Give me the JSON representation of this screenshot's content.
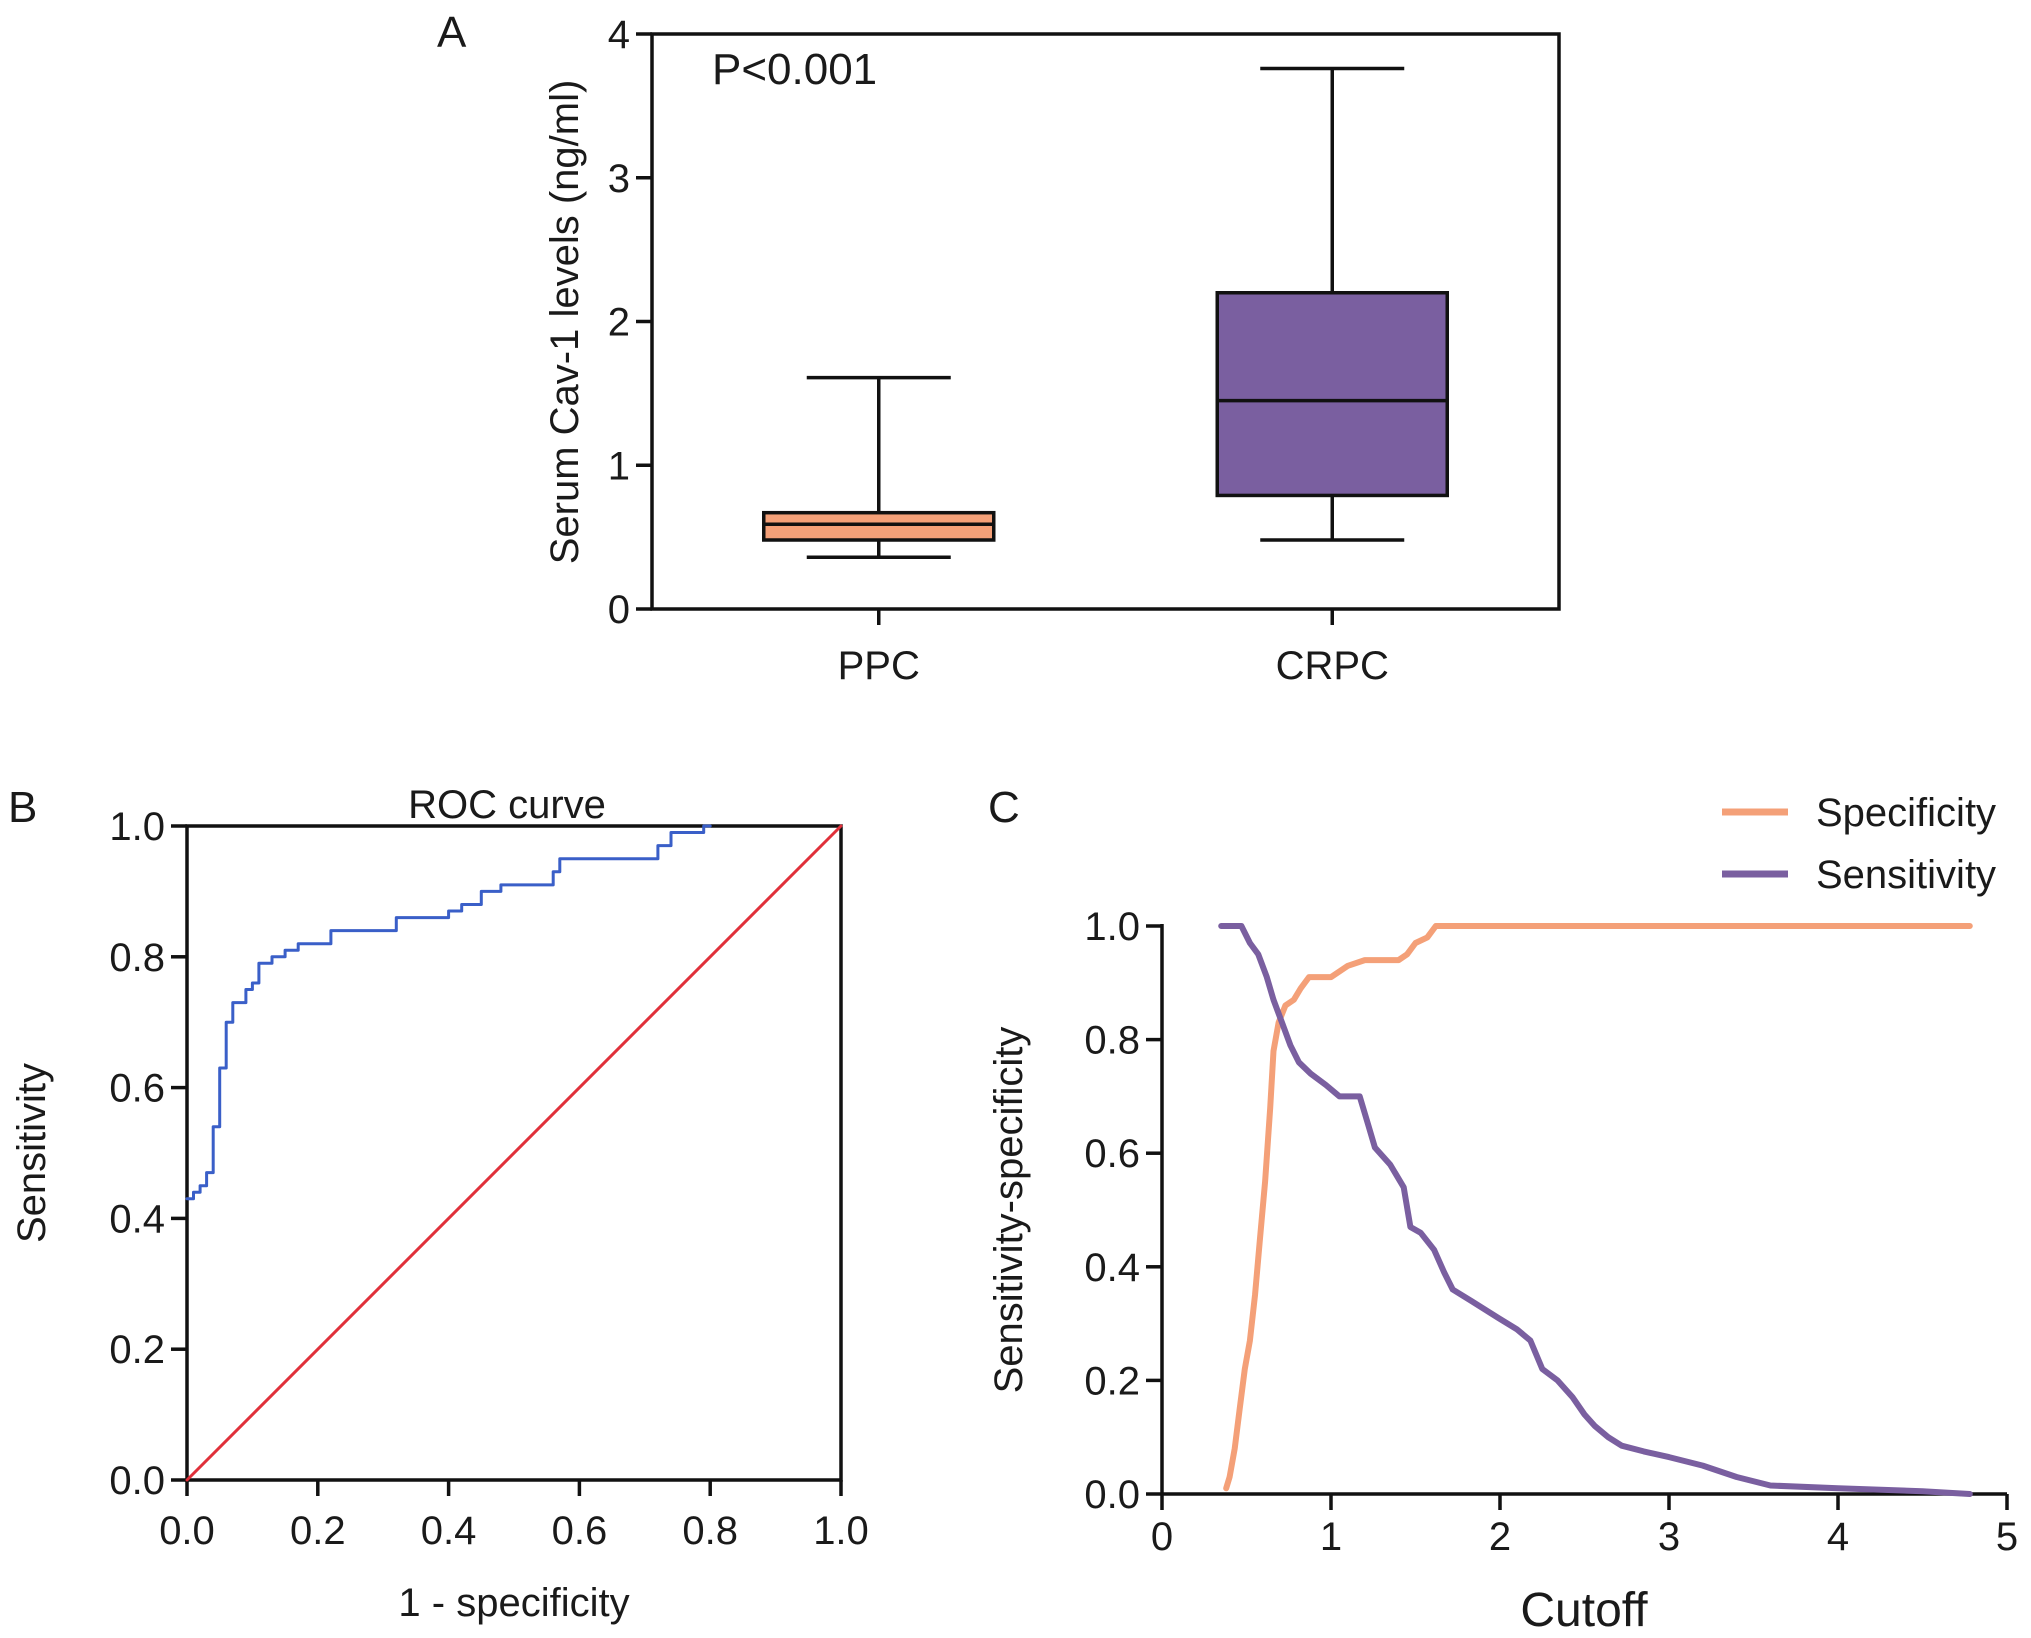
{
  "chart_data": [
    {
      "panel": "A",
      "type": "box",
      "title": "",
      "xlabel": "",
      "ylabel": "Serum Cav-1 levels (ng/ml)",
      "ylim": [
        0,
        4
      ],
      "yticks": [
        "0",
        "1",
        "2",
        "3",
        "4"
      ],
      "categories": [
        "PPC",
        "CRPC"
      ],
      "annotation": "P<0.001",
      "grid": false,
      "boxes": [
        {
          "name": "PPC",
          "whisker_low": 0.36,
          "q1": 0.48,
          "median": 0.59,
          "q3": 0.67,
          "whisker_high": 1.61,
          "color": "#F4A078"
        },
        {
          "name": "CRPC",
          "whisker_low": 0.48,
          "q1": 0.79,
          "median": 1.45,
          "q3": 2.2,
          "whisker_high": 3.76,
          "color": "#7A5FA0"
        }
      ]
    },
    {
      "panel": "B",
      "type": "line",
      "title": "ROC curve",
      "xlabel": "1 - specificity",
      "ylabel": "Sensitivity",
      "xlim": [
        0,
        1
      ],
      "ylim": [
        0,
        1
      ],
      "xticks": [
        "0.0",
        "0.2",
        "0.4",
        "0.6",
        "0.8",
        "1.0"
      ],
      "yticks": [
        "0.0",
        "0.2",
        "0.4",
        "0.6",
        "0.8",
        "1.0"
      ],
      "grid": false,
      "series": [
        {
          "name": "ROC",
          "color": "#3A5FC8",
          "step": true,
          "points": [
            [
              0,
              0.43
            ],
            [
              0.01,
              0.43
            ],
            [
              0.01,
              0.44
            ],
            [
              0.02,
              0.44
            ],
            [
              0.02,
              0.45
            ],
            [
              0.03,
              0.45
            ],
            [
              0.03,
              0.47
            ],
            [
              0.04,
              0.47
            ],
            [
              0.04,
              0.54
            ],
            [
              0.05,
              0.54
            ],
            [
              0.05,
              0.63
            ],
            [
              0.06,
              0.63
            ],
            [
              0.06,
              0.7
            ],
            [
              0.07,
              0.7
            ],
            [
              0.07,
              0.73
            ],
            [
              0.09,
              0.73
            ],
            [
              0.09,
              0.75
            ],
            [
              0.1,
              0.75
            ],
            [
              0.1,
              0.76
            ],
            [
              0.11,
              0.76
            ],
            [
              0.11,
              0.79
            ],
            [
              0.13,
              0.79
            ],
            [
              0.13,
              0.8
            ],
            [
              0.15,
              0.8
            ],
            [
              0.15,
              0.81
            ],
            [
              0.17,
              0.81
            ],
            [
              0.17,
              0.82
            ],
            [
              0.22,
              0.82
            ],
            [
              0.22,
              0.84
            ],
            [
              0.32,
              0.84
            ],
            [
              0.32,
              0.86
            ],
            [
              0.4,
              0.86
            ],
            [
              0.4,
              0.87
            ],
            [
              0.42,
              0.87
            ],
            [
              0.42,
              0.88
            ],
            [
              0.45,
              0.88
            ],
            [
              0.45,
              0.9
            ],
            [
              0.48,
              0.9
            ],
            [
              0.48,
              0.91
            ],
            [
              0.56,
              0.91
            ],
            [
              0.56,
              0.93
            ],
            [
              0.57,
              0.93
            ],
            [
              0.57,
              0.95
            ],
            [
              0.72,
              0.95
            ],
            [
              0.72,
              0.97
            ],
            [
              0.74,
              0.97
            ],
            [
              0.74,
              0.99
            ],
            [
              0.79,
              0.99
            ],
            [
              0.79,
              1.0
            ],
            [
              0.8,
              1.0
            ]
          ]
        },
        {
          "name": "Reference",
          "color": "#E0303A",
          "step": false,
          "points": [
            [
              0,
              0
            ],
            [
              1,
              1
            ]
          ]
        }
      ]
    },
    {
      "panel": "C",
      "type": "line",
      "title": "",
      "xlabel": "Cutoff",
      "ylabel": "Sensitivity-specificity",
      "xlim": [
        0,
        5
      ],
      "ylim": [
        0,
        1
      ],
      "xticks": [
        "0",
        "1",
        "2",
        "3",
        "4",
        "5"
      ],
      "yticks": [
        "0.0",
        "0.2",
        "0.4",
        "0.6",
        "0.8",
        "1.0"
      ],
      "legend_position": "top-right",
      "grid": false,
      "series": [
        {
          "name": "Specificity",
          "color": "#F4A078",
          "points": [
            [
              0.38,
              0.01
            ],
            [
              0.4,
              0.03
            ],
            [
              0.43,
              0.08
            ],
            [
              0.46,
              0.15
            ],
            [
              0.49,
              0.22
            ],
            [
              0.52,
              0.27
            ],
            [
              0.55,
              0.35
            ],
            [
              0.58,
              0.45
            ],
            [
              0.61,
              0.55
            ],
            [
              0.64,
              0.68
            ],
            [
              0.66,
              0.78
            ],
            [
              0.69,
              0.83
            ],
            [
              0.73,
              0.86
            ],
            [
              0.78,
              0.87
            ],
            [
              0.82,
              0.89
            ],
            [
              0.87,
              0.91
            ],
            [
              0.93,
              0.91
            ],
            [
              1.0,
              0.91
            ],
            [
              1.1,
              0.93
            ],
            [
              1.2,
              0.94
            ],
            [
              1.4,
              0.94
            ],
            [
              1.45,
              0.95
            ],
            [
              1.5,
              0.97
            ],
            [
              1.57,
              0.98
            ],
            [
              1.62,
              1.0
            ],
            [
              2.0,
              1.0
            ],
            [
              3.0,
              1.0
            ],
            [
              4.0,
              1.0
            ],
            [
              4.78,
              1.0
            ]
          ]
        },
        {
          "name": "Sensitivity",
          "color": "#7A5FA0",
          "points": [
            [
              0.35,
              1.0
            ],
            [
              0.47,
              1.0
            ],
            [
              0.52,
              0.97
            ],
            [
              0.57,
              0.95
            ],
            [
              0.62,
              0.91
            ],
            [
              0.66,
              0.87
            ],
            [
              0.71,
              0.83
            ],
            [
              0.76,
              0.79
            ],
            [
              0.81,
              0.76
            ],
            [
              0.88,
              0.74
            ],
            [
              0.97,
              0.72
            ],
            [
              1.05,
              0.7
            ],
            [
              1.17,
              0.7
            ],
            [
              1.22,
              0.65
            ],
            [
              1.26,
              0.61
            ],
            [
              1.35,
              0.58
            ],
            [
              1.43,
              0.54
            ],
            [
              1.47,
              0.47
            ],
            [
              1.53,
              0.46
            ],
            [
              1.61,
              0.43
            ],
            [
              1.67,
              0.39
            ],
            [
              1.72,
              0.36
            ],
            [
              1.83,
              0.34
            ],
            [
              1.99,
              0.31
            ],
            [
              2.1,
              0.29
            ],
            [
              2.18,
              0.27
            ],
            [
              2.25,
              0.22
            ],
            [
              2.34,
              0.2
            ],
            [
              2.43,
              0.17
            ],
            [
              2.5,
              0.14
            ],
            [
              2.56,
              0.12
            ],
            [
              2.64,
              0.1
            ],
            [
              2.72,
              0.085
            ],
            [
              2.85,
              0.075
            ],
            [
              3.0,
              0.065
            ],
            [
              3.2,
              0.05
            ],
            [
              3.4,
              0.03
            ],
            [
              3.6,
              0.015
            ],
            [
              4.0,
              0.01
            ],
            [
              4.5,
              0.005
            ],
            [
              4.78,
              0.0
            ]
          ]
        }
      ]
    }
  ]
}
